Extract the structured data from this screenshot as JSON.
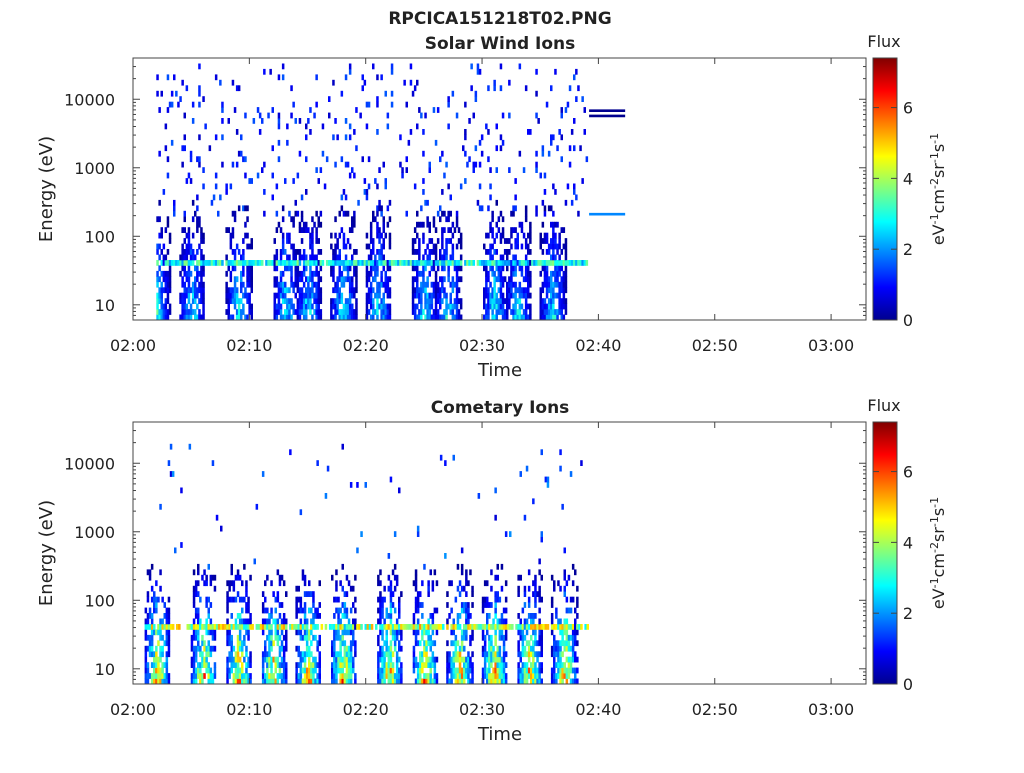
{
  "figure_title": "RPCICA151218T02.PNG",
  "chart_data": [
    {
      "type": "heatmap",
      "title": "Solar Wind Ions",
      "xlabel": "Time",
      "ylabel": "Energy (eV)",
      "xtick_labels": [
        "02:00",
        "02:10",
        "02:20",
        "02:30",
        "02:40",
        "02:50",
        "03:00"
      ],
      "ytick_labels": [
        "10",
        "100",
        "1000",
        "10000"
      ],
      "y_scale": "log",
      "ylim": [
        6,
        40000
      ],
      "xlim_minutes": [
        0,
        63
      ],
      "data_end_minute": 39,
      "colorbar": {
        "title": "Flux",
        "label": "eV-1cm-2sr-1s-1",
        "ticks": [
          "0",
          "2",
          "4",
          "6"
        ],
        "range": [
          0,
          7.4
        ],
        "colormap": "jet"
      },
      "features": [
        {
          "kind": "band",
          "energy": 43,
          "start": 2,
          "end": 39,
          "flux": 3.2
        },
        {
          "kind": "bursts",
          "centers": [
            2,
            5,
            9,
            13,
            15,
            18,
            21,
            25,
            27,
            31,
            33,
            36
          ],
          "flux": 3.5
        },
        {
          "kind": "scatter",
          "energy_range": [
            200,
            35000
          ],
          "flux": 0.8
        }
      ],
      "annotation_lines": [
        {
          "start": 39.2,
          "end": 42.3,
          "energy": 6800,
          "color": "#00008f"
        },
        {
          "start": 39.2,
          "end": 42.3,
          "energy": 5700,
          "color": "#00008f"
        },
        {
          "start": 39.2,
          "end": 42.3,
          "energy": 210,
          "color": "#0087ff"
        }
      ]
    },
    {
      "type": "heatmap",
      "title": "Cometary Ions",
      "xlabel": "Time",
      "ylabel": "Energy (eV)",
      "xtick_labels": [
        "02:00",
        "02:10",
        "02:20",
        "02:30",
        "02:40",
        "02:50",
        "03:00"
      ],
      "ytick_labels": [
        "10",
        "100",
        "1000",
        "10000"
      ],
      "y_scale": "log",
      "ylim": [
        6,
        40000
      ],
      "xlim_minutes": [
        0,
        63
      ],
      "data_end_minute": 39,
      "colorbar": {
        "title": "Flux",
        "label": "eV-1cm-2sr-1s-1",
        "ticks": [
          "0",
          "2",
          "4",
          "6"
        ],
        "range": [
          0,
          7.4
        ],
        "colormap": "jet"
      },
      "features": [
        {
          "kind": "band",
          "energy": 43,
          "start": 1,
          "end": 39,
          "flux": 4.5
        },
        {
          "kind": "bursts",
          "centers": [
            2,
            6,
            9,
            12,
            15,
            18,
            22,
            25,
            28,
            31,
            34,
            37
          ],
          "flux": 6.5
        },
        {
          "kind": "scatter",
          "energy_range": [
            300,
            20000
          ],
          "flux": 1.0
        }
      ]
    }
  ]
}
